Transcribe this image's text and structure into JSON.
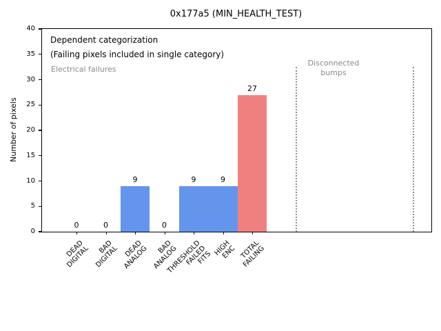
{
  "chart_data": {
    "type": "bar",
    "title": "0x177a5 (MIN_HEALTH_TEST)",
    "xlabel": "",
    "ylabel": "Number of pixels",
    "ylim": [
      0,
      40
    ],
    "yticks": [
      0,
      5,
      10,
      15,
      20,
      25,
      30,
      35,
      40
    ],
    "grid": false,
    "legend": "none",
    "categories": [
      "DEAD\nDIGITAL",
      "BAD\nDIGITAL",
      "DEAD\nANALOG",
      "BAD\nANALOG",
      "THRESHOLD\nFAILED\nFITS",
      "HIGH\nENC",
      "TOTAL\nFAILING"
    ],
    "values": [
      0,
      0,
      9,
      0,
      9,
      9,
      27
    ],
    "bar_value_labels": [
      "0",
      "0",
      "9",
      "0",
      "9",
      "9",
      "27"
    ],
    "bar_colors": [
      "#6495ED",
      "#6495ED",
      "#6495ED",
      "#6495ED",
      "#6495ED",
      "#6495ED",
      "#F08080"
    ],
    "annotations": [
      {
        "text": "Dependent categorization",
        "color": "#000000"
      },
      {
        "text": "(Failing pixels included in single category)",
        "color": "#000000"
      },
      {
        "text": "Electrical failures",
        "color": "#8a8a8a"
      },
      {
        "text": "Disconnected\nbumps",
        "color": "#8a8a8a"
      }
    ],
    "section_dividers": {
      "style": "dotted",
      "color": "#8f8f8f",
      "positions_in_category_units": [
        7.5,
        11.5
      ],
      "top_value": 32.5
    },
    "colors": {
      "electrical_bar": "#6495ED",
      "total_bar": "#F08080",
      "section_text": "#8a8a8a",
      "axis": "#000000",
      "background": "#ffffff"
    }
  }
}
